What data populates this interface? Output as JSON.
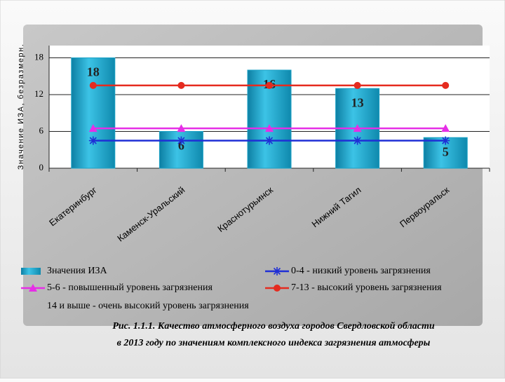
{
  "chart_data": {
    "type": "bar",
    "ylabel": "Значение ИЗА, безразмерн.",
    "categories": [
      "Екатеринбург",
      "Каменск-Уральский",
      "Краснотурьинск",
      "Нижний Тагил",
      "Первоуральск"
    ],
    "series": [
      {
        "name": "Значения ИЗА",
        "type": "bar",
        "color": "#1ba2c6",
        "values": [
          18,
          6,
          16,
          13,
          5
        ]
      },
      {
        "name": "0-4 - низкий уровень загрязнения",
        "type": "line",
        "marker": "star",
        "color": "#1f2fd6",
        "values": [
          4.5,
          4.5,
          4.5,
          4.5,
          4.5
        ]
      },
      {
        "name": "5-6 - повышенный уровень загрязнения",
        "type": "line",
        "marker": "triangle",
        "color": "#e62ee6",
        "values": [
          6.5,
          6.5,
          6.5,
          6.5,
          6.5
        ]
      },
      {
        "name": "7-13 - высокий уровень загрязнения",
        "type": "line",
        "marker": "circle",
        "color": "#e52b1f",
        "values": [
          13.5,
          13.5,
          13.5,
          13.5,
          13.5
        ]
      },
      {
        "name": "14 и выше - очень высокий уровень загрязнения",
        "type": "line",
        "values": [
          null,
          null,
          null,
          null,
          null
        ]
      }
    ],
    "ylim": [
      0,
      20
    ],
    "yticks": [
      0,
      6,
      12,
      18
    ],
    "grid": true,
    "caption": [
      "Рис. 1.1.1. Качество атмосферного воздуха городов Свердловской области",
      "в 2013 году по значениям комплексного индекса загрязнения атмосферы"
    ]
  }
}
